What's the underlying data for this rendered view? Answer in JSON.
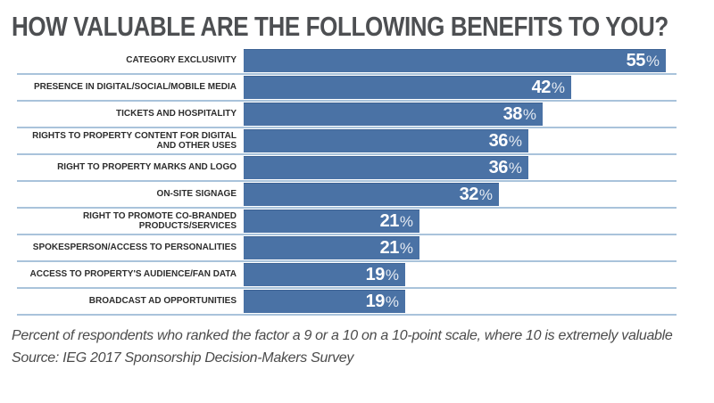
{
  "ui": {
    "percent_symbol": "%"
  },
  "header": {
    "title": "HOW VALUABLE ARE THE FOLLOWING BENEFITS TO YOU?"
  },
  "footnote": {
    "line1": "Percent of respondents who ranked the factor a 9 or a 10 on a 10-point scale, where 10 is extremely valuable",
    "line2": "Source: IEG 2017 Sponsorship Decision-Makers Survey"
  },
  "chart_data": {
    "type": "bar",
    "orientation": "horizontal",
    "title": "HOW VALUABLE ARE THE FOLLOWING BENEFITS TO YOU?",
    "unit": "%",
    "xlim": [
      0,
      57
    ],
    "grid": false,
    "legend": false,
    "value_label_position": "inside-right",
    "categories": [
      "CATEGORY EXCLUSIVITY",
      "PRESENCE IN DIGITAL/SOCIAL/MOBILE MEDIA",
      "TICKETS AND HOSPITALITY",
      "RIGHTS TO PROPERTY CONTENT FOR DIGITAL AND OTHER USES",
      "RIGHT TO PROPERTY MARKS AND LOGO",
      "ON-SITE SIGNAGE",
      "RIGHT TO PROMOTE CO-BRANDED PRODUCTS/SERVICES",
      "SPOKESPERSON/ACCESS TO PERSONALITIES",
      "ACCESS TO PROPERTY'S AUDIENCE/FAN DATA",
      "BROADCAST AD OPPORTUNITIES"
    ],
    "values": [
      55,
      42,
      38,
      36,
      36,
      32,
      21,
      21,
      19,
      19
    ],
    "value_labels": [
      "55",
      "42",
      "38",
      "36",
      "36",
      "32",
      "21",
      "21",
      "19",
      "19"
    ],
    "colors": {
      "bar": "#4a72a5",
      "bar_edge": "#3d6394",
      "divider": "#a9c3db",
      "title_text": "#4d4f52",
      "label_text": "#2d2d2d",
      "value_text": "#ffffff",
      "footnote_text": "#4b4b4b",
      "background": "#ffffff"
    },
    "footnote": "Percent of respondents who ranked the factor a 9 or a 10 on a 10-point scale, where 10 is extremely valuable",
    "source": "Source: IEG 2017 Sponsorship Decision-Makers Survey"
  }
}
